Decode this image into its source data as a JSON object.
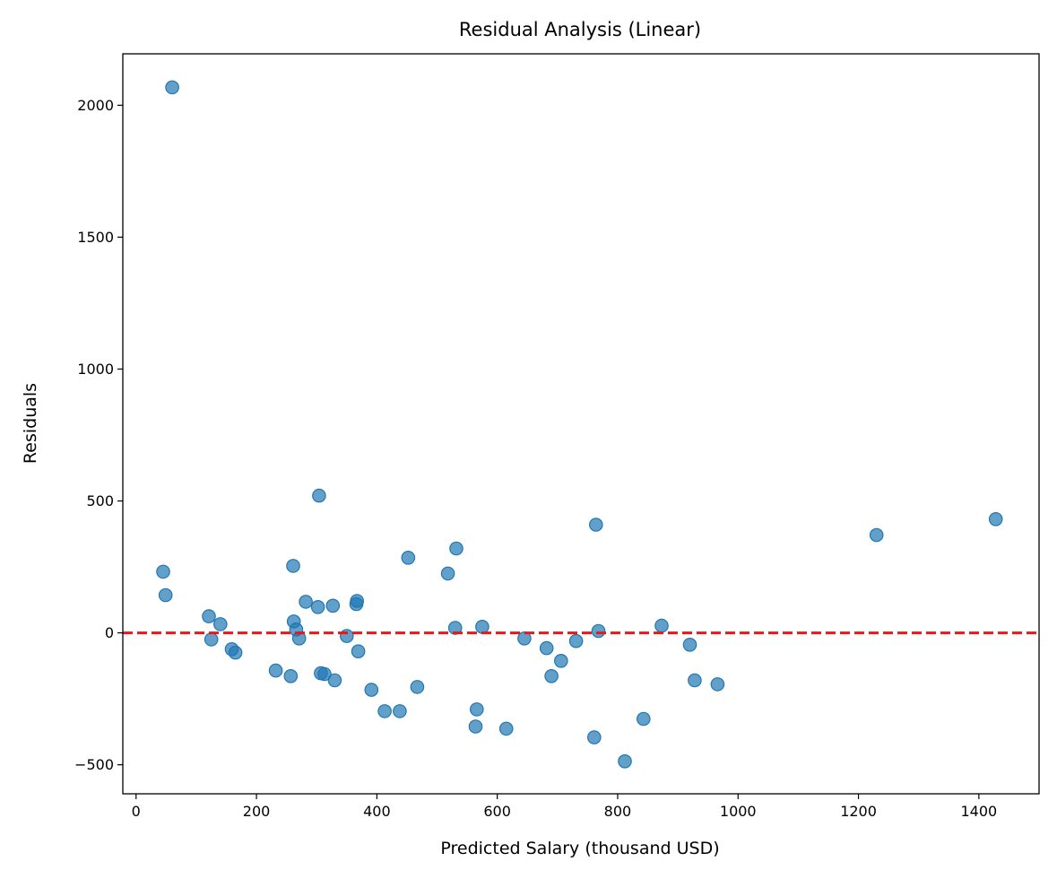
{
  "chart_data": {
    "type": "scatter",
    "title": "Residual Analysis (Linear)",
    "xlabel": "Predicted Salary (thousand USD)",
    "ylabel": "Residuals",
    "xlim": [
      -22,
      1500
    ],
    "ylim": [
      -610,
      2195
    ],
    "xticks": [
      0,
      200,
      400,
      600,
      800,
      1000,
      1200,
      1400
    ],
    "xtick_labels": [
      "0",
      "200",
      "400",
      "600",
      "800",
      "1000",
      "1200",
      "1400"
    ],
    "yticks": [
      -500,
      0,
      500,
      1000,
      1500,
      2000
    ],
    "ytick_labels": [
      "−500",
      "0",
      "500",
      "1000",
      "1500",
      "2000"
    ],
    "grid": false,
    "reference_line": {
      "y": 0,
      "color": "#e31a1c",
      "style": "dashed"
    },
    "point_color": "#1f77b4",
    "points": [
      {
        "x": 60,
        "y": 2068
      },
      {
        "x": 45,
        "y": 232
      },
      {
        "x": 49,
        "y": 143
      },
      {
        "x": 121,
        "y": 63
      },
      {
        "x": 125,
        "y": -25
      },
      {
        "x": 140,
        "y": 33
      },
      {
        "x": 159,
        "y": -62
      },
      {
        "x": 165,
        "y": -75
      },
      {
        "x": 232,
        "y": -143
      },
      {
        "x": 257,
        "y": -164
      },
      {
        "x": 261,
        "y": 254
      },
      {
        "x": 262,
        "y": 43
      },
      {
        "x": 266,
        "y": 13
      },
      {
        "x": 271,
        "y": -21
      },
      {
        "x": 282,
        "y": 118
      },
      {
        "x": 302,
        "y": 98
      },
      {
        "x": 304,
        "y": 520
      },
      {
        "x": 307,
        "y": -153
      },
      {
        "x": 313,
        "y": -156
      },
      {
        "x": 327,
        "y": 103
      },
      {
        "x": 330,
        "y": -180
      },
      {
        "x": 350,
        "y": -12
      },
      {
        "x": 366,
        "y": 109
      },
      {
        "x": 367,
        "y": 121
      },
      {
        "x": 369,
        "y": -70
      },
      {
        "x": 391,
        "y": -216
      },
      {
        "x": 413,
        "y": -297
      },
      {
        "x": 438,
        "y": -297
      },
      {
        "x": 452,
        "y": 285
      },
      {
        "x": 467,
        "y": -205
      },
      {
        "x": 518,
        "y": 225
      },
      {
        "x": 530,
        "y": 19
      },
      {
        "x": 532,
        "y": 320
      },
      {
        "x": 564,
        "y": -355
      },
      {
        "x": 566,
        "y": -290
      },
      {
        "x": 575,
        "y": 23
      },
      {
        "x": 615,
        "y": -363
      },
      {
        "x": 645,
        "y": -21
      },
      {
        "x": 682,
        "y": -58
      },
      {
        "x": 690,
        "y": -164
      },
      {
        "x": 706,
        "y": -106
      },
      {
        "x": 731,
        "y": -31
      },
      {
        "x": 761,
        "y": -396
      },
      {
        "x": 764,
        "y": 410
      },
      {
        "x": 768,
        "y": 7
      },
      {
        "x": 812,
        "y": -487
      },
      {
        "x": 843,
        "y": -326
      },
      {
        "x": 873,
        "y": 27
      },
      {
        "x": 920,
        "y": -45
      },
      {
        "x": 928,
        "y": -180
      },
      {
        "x": 966,
        "y": -195
      },
      {
        "x": 1230,
        "y": 371
      },
      {
        "x": 1428,
        "y": 431
      }
    ]
  }
}
